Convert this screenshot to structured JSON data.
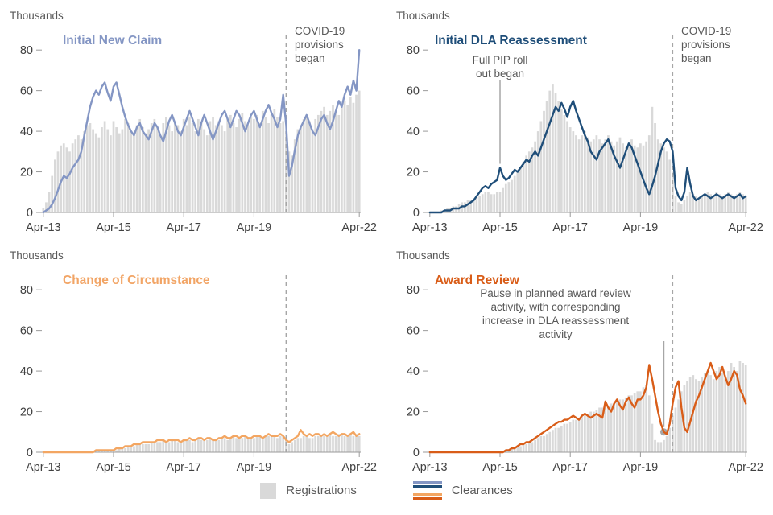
{
  "style": {
    "background": "#ffffff",
    "bar_color": "#d9d9d9",
    "axis_text_color": "#404040",
    "annotation_text_color": "#595959",
    "dashed_line_color": "#a6a6a6",
    "axis_line_color": "#9a9a9a"
  },
  "axis": {
    "y_unit": "Thousands",
    "y_ticks": [
      0,
      20,
      40,
      60,
      80
    ],
    "y_max": 88,
    "n_points": 109,
    "x_ticks": [
      {
        "label": "Apr-13",
        "index": 0
      },
      {
        "label": "Apr-15",
        "index": 24
      },
      {
        "label": "Apr-17",
        "index": 48
      },
      {
        "label": "Apr-19",
        "index": 72
      },
      {
        "label": "Apr-22",
        "index": 108
      }
    ]
  },
  "legend": {
    "registrations_label": "Registrations",
    "clearances_label": "Clearances",
    "registrations_color": "#d9d9d9",
    "clearances_colors": [
      "#8496c4",
      "#1f4e79",
      "#f3a662",
      "#d95d18"
    ]
  },
  "chart_data": [
    {
      "type": "bar",
      "title": "Initial New Claim",
      "title_color": "#8496c4",
      "line_color": "#8496c4",
      "bar_color": "#d9d9d9",
      "x_start": "Apr-13",
      "x_end": "Apr-22",
      "frequency": "monthly",
      "ylabel": "Thousands",
      "ylim": [
        0,
        88
      ],
      "series": [
        {
          "name": "Registrations",
          "type": "bar",
          "values": [
            2,
            5,
            10,
            18,
            26,
            30,
            33,
            34,
            32,
            30,
            34,
            36,
            38,
            36,
            40,
            43,
            44,
            41,
            39,
            37,
            42,
            45,
            41,
            38,
            45,
            42,
            39,
            41,
            46,
            44,
            40,
            38,
            43,
            46,
            42,
            39,
            41,
            44,
            46,
            42,
            38,
            44,
            47,
            43,
            40,
            45,
            43,
            40,
            46,
            43,
            47,
            44,
            40,
            46,
            44,
            41,
            38,
            45,
            47,
            43,
            45,
            43,
            40,
            46,
            48,
            44,
            42,
            46,
            49,
            45,
            43,
            47,
            46,
            48,
            44,
            50,
            47,
            44,
            48,
            51,
            47,
            44,
            45,
            40,
            30,
            28,
            36,
            41,
            43,
            46,
            48,
            45,
            41,
            46,
            48,
            50,
            52,
            48,
            50,
            53,
            50,
            48,
            52,
            55,
            53,
            57,
            54,
            58,
            60
          ]
        },
        {
          "name": "Clearances",
          "type": "line",
          "values": [
            0,
            1,
            2,
            4,
            7,
            11,
            15,
            18,
            17,
            19,
            22,
            24,
            26,
            30,
            38,
            45,
            52,
            57,
            60,
            58,
            62,
            64,
            59,
            55,
            62,
            64,
            58,
            52,
            47,
            43,
            40,
            38,
            42,
            44,
            40,
            38,
            36,
            40,
            44,
            42,
            38,
            35,
            40,
            45,
            48,
            44,
            40,
            38,
            42,
            46,
            50,
            46,
            42,
            38,
            44,
            48,
            44,
            40,
            36,
            40,
            44,
            48,
            50,
            46,
            42,
            46,
            50,
            48,
            44,
            40,
            44,
            48,
            50,
            46,
            42,
            46,
            50,
            53,
            49,
            46,
            42,
            46,
            58,
            43,
            18,
            23,
            31,
            38,
            42,
            45,
            48,
            44,
            40,
            38,
            42,
            46,
            48,
            44,
            41,
            45,
            50,
            55,
            52,
            58,
            62,
            58,
            65,
            60,
            80
          ]
        }
      ],
      "annotations": {
        "covid": {
          "index": 83,
          "show_label": true,
          "lines": [
            "COVID-19",
            "provisions",
            "began"
          ]
        }
      }
    },
    {
      "type": "bar",
      "title": "Initial DLA Reassessment",
      "title_color": "#1f4e79",
      "line_color": "#1f4e79",
      "bar_color": "#d9d9d9",
      "x_start": "Apr-13",
      "x_end": "Apr-22",
      "frequency": "monthly",
      "ylabel": "Thousands",
      "ylim": [
        0,
        88
      ],
      "series": [
        {
          "name": "Registrations",
          "type": "bar",
          "values": [
            0,
            0,
            0,
            0,
            1,
            1,
            2,
            2,
            3,
            3,
            4,
            5,
            5,
            6,
            6,
            7,
            8,
            8,
            9,
            10,
            10,
            9,
            9,
            10,
            10,
            12,
            14,
            15,
            16,
            18,
            20,
            22,
            25,
            28,
            30,
            32,
            35,
            40,
            45,
            50,
            55,
            60,
            63,
            59,
            55,
            51,
            48,
            45,
            42,
            40,
            38,
            36,
            38,
            40,
            37,
            35,
            36,
            38,
            36,
            34,
            36,
            38,
            35,
            33,
            35,
            37,
            34,
            32,
            34,
            36,
            33,
            32,
            34,
            33,
            35,
            38,
            52,
            44,
            36,
            34,
            32,
            30,
            26,
            20,
            8,
            5,
            4,
            6,
            8,
            10,
            9,
            8,
            7,
            8,
            9,
            10,
            9,
            8,
            10,
            9,
            8,
            9,
            10,
            9,
            8,
            9,
            10,
            9,
            8
          ]
        },
        {
          "name": "Clearances",
          "type": "line",
          "values": [
            0,
            0,
            0,
            0,
            0,
            1,
            1,
            1,
            2,
            2,
            2,
            3,
            3,
            4,
            5,
            6,
            8,
            10,
            12,
            13,
            12,
            14,
            15,
            16,
            22,
            18,
            16,
            17,
            19,
            21,
            20,
            22,
            24,
            26,
            25,
            28,
            30,
            28,
            32,
            36,
            40,
            44,
            48,
            52,
            50,
            54,
            51,
            47,
            52,
            55,
            50,
            46,
            42,
            38,
            35,
            30,
            28,
            26,
            30,
            32,
            34,
            36,
            32,
            28,
            25,
            22,
            26,
            30,
            34,
            32,
            28,
            24,
            20,
            16,
            12,
            9,
            13,
            18,
            24,
            30,
            34,
            36,
            35,
            30,
            12,
            8,
            6,
            10,
            22,
            14,
            8,
            6,
            7,
            8,
            9,
            8,
            7,
            8,
            9,
            8,
            7,
            8,
            9,
            8,
            7,
            8,
            9,
            7,
            8
          ]
        }
      ],
      "annotations": {
        "covid": {
          "index": 83,
          "show_label": true,
          "lines": [
            "COVID-19",
            "provisions",
            "began"
          ]
        },
        "pip": {
          "index": 24,
          "point_value": 22,
          "lines": [
            "Full PIP roll",
            "out began"
          ]
        }
      }
    },
    {
      "type": "bar",
      "title": "Change of Circumstance",
      "title_color": "#f2a566",
      "line_color": "#f3a662",
      "bar_color": "#d9d9d9",
      "x_start": "Apr-13",
      "x_end": "Apr-22",
      "frequency": "monthly",
      "ylabel": "Thousands",
      "ylim": [
        0,
        88
      ],
      "series": [
        {
          "name": "Registrations",
          "type": "bar",
          "values": [
            0,
            0,
            0,
            0,
            0,
            0,
            0,
            0,
            0,
            0,
            0,
            0,
            0,
            0,
            0,
            0,
            0,
            0,
            1,
            1,
            1,
            1,
            1,
            1,
            1,
            1,
            2,
            2,
            2,
            3,
            3,
            3,
            4,
            4,
            4,
            4,
            4,
            5,
            5,
            5,
            5,
            6,
            5,
            5,
            6,
            6,
            5,
            5,
            6,
            6,
            6,
            5,
            6,
            7,
            6,
            6,
            6,
            7,
            6,
            6,
            6,
            7,
            7,
            6,
            7,
            8,
            7,
            7,
            7,
            8,
            7,
            7,
            7,
            8,
            8,
            7,
            8,
            8,
            8,
            8,
            7,
            8,
            8,
            6,
            4,
            5,
            6,
            7,
            7,
            8,
            8,
            7,
            7,
            8,
            8,
            8,
            8,
            8,
            9,
            8,
            8,
            9,
            9,
            8,
            8,
            9,
            8,
            9,
            8
          ]
        },
        {
          "name": "Clearances",
          "type": "line",
          "values": [
            0,
            0,
            0,
            0,
            0,
            0,
            0,
            0,
            0,
            0,
            0,
            0,
            0,
            0,
            0,
            0,
            0,
            0,
            1,
            1,
            1,
            1,
            1,
            1,
            1,
            2,
            2,
            2,
            3,
            3,
            3,
            4,
            4,
            4,
            5,
            5,
            5,
            5,
            5,
            6,
            6,
            6,
            5,
            6,
            6,
            6,
            6,
            5,
            6,
            6,
            7,
            6,
            6,
            7,
            7,
            6,
            7,
            7,
            6,
            6,
            7,
            7,
            8,
            7,
            7,
            8,
            8,
            7,
            8,
            8,
            7,
            7,
            8,
            8,
            8,
            7,
            8,
            9,
            8,
            8,
            8,
            9,
            8,
            6,
            5,
            6,
            7,
            8,
            11,
            9,
            8,
            9,
            8,
            9,
            9,
            8,
            9,
            8,
            9,
            10,
            9,
            8,
            9,
            9,
            8,
            9,
            10,
            8,
            9
          ]
        }
      ],
      "annotations": {
        "covid": {
          "index": 83,
          "show_label": false
        }
      }
    },
    {
      "type": "bar",
      "title": "Award Review",
      "title_color": "#d95d18",
      "line_color": "#d95d18",
      "bar_color": "#d9d9d9",
      "x_start": "Apr-13",
      "x_end": "Apr-22",
      "frequency": "monthly",
      "ylabel": "Thousands",
      "ylim": [
        0,
        88
      ],
      "series": [
        {
          "name": "Registrations",
          "type": "bar",
          "values": [
            0,
            0,
            0,
            0,
            0,
            0,
            0,
            0,
            0,
            0,
            0,
            0,
            0,
            0,
            0,
            0,
            0,
            0,
            0,
            0,
            0,
            0,
            0,
            0,
            0,
            0,
            1,
            1,
            2,
            2,
            3,
            3,
            4,
            4,
            5,
            5,
            6,
            7,
            8,
            8,
            9,
            10,
            11,
            12,
            12,
            13,
            14,
            14,
            15,
            16,
            16,
            17,
            18,
            18,
            19,
            20,
            20,
            21,
            22,
            22,
            22,
            23,
            24,
            24,
            25,
            26,
            26,
            27,
            28,
            28,
            29,
            30,
            30,
            32,
            33,
            28,
            14,
            6,
            5,
            5,
            6,
            8,
            12,
            18,
            22,
            26,
            30,
            33,
            35,
            37,
            38,
            36,
            35,
            37,
            39,
            40,
            38,
            36,
            40,
            42,
            39,
            37,
            40,
            44,
            42,
            40,
            45,
            44,
            43
          ]
        },
        {
          "name": "Clearances",
          "type": "line",
          "values": [
            0,
            0,
            0,
            0,
            0,
            0,
            0,
            0,
            0,
            0,
            0,
            0,
            0,
            0,
            0,
            0,
            0,
            0,
            0,
            0,
            0,
            0,
            0,
            0,
            0,
            0,
            1,
            1,
            2,
            2,
            3,
            4,
            4,
            5,
            5,
            6,
            7,
            8,
            9,
            10,
            11,
            12,
            13,
            14,
            15,
            15,
            16,
            16,
            17,
            18,
            17,
            16,
            18,
            19,
            18,
            17,
            18,
            19,
            18,
            17,
            25,
            22,
            20,
            24,
            26,
            23,
            21,
            25,
            27,
            24,
            22,
            26,
            26,
            28,
            32,
            43,
            36,
            28,
            20,
            14,
            10,
            9,
            14,
            24,
            32,
            35,
            22,
            12,
            10,
            15,
            20,
            25,
            28,
            32,
            36,
            40,
            44,
            40,
            36,
            38,
            42,
            37,
            33,
            36,
            40,
            38,
            31,
            28,
            24
          ]
        }
      ],
      "annotations": {
        "covid": {
          "index": 83,
          "show_label": false
        },
        "pause": {
          "index": 80,
          "point_value": 10,
          "lines": [
            "Pause in planned award review",
            "activity, with corresponding",
            "increase in DLA reassessment",
            "activity"
          ]
        }
      }
    }
  ]
}
